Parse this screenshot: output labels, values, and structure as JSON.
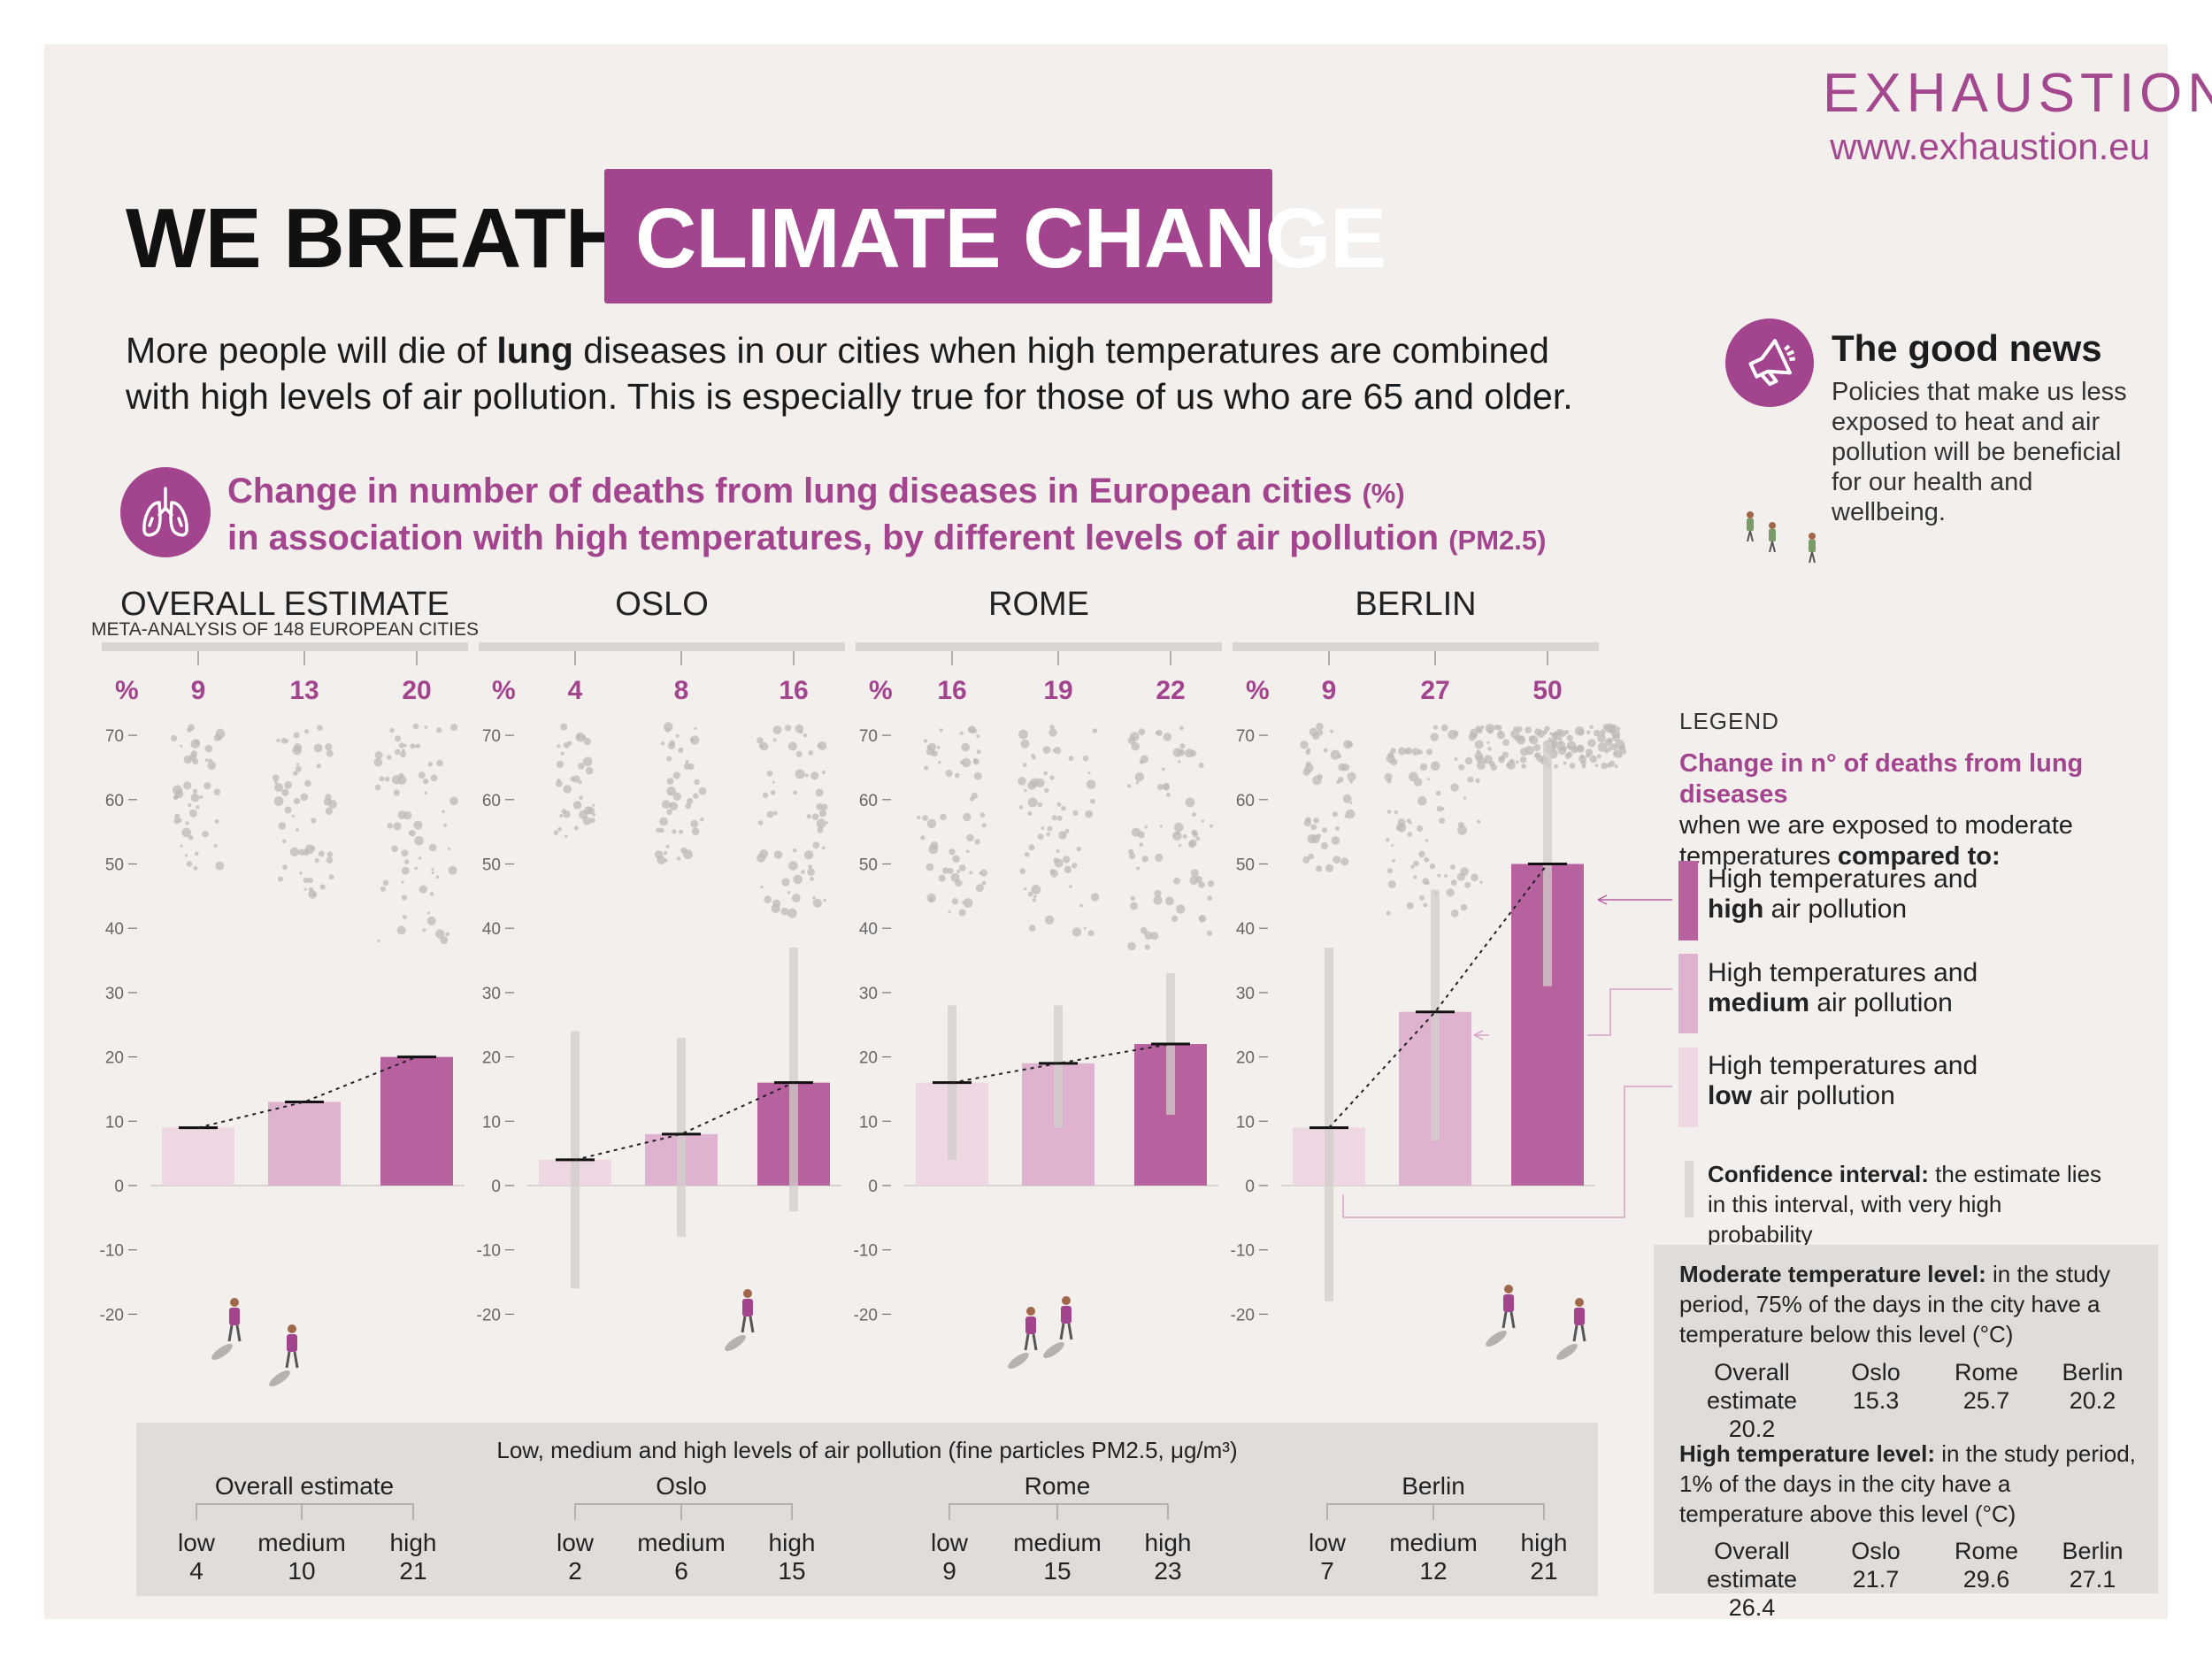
{
  "brand": {
    "name": "EXHAUSTION",
    "url": "www.exhaustion.eu"
  },
  "title": {
    "part1": "WE BREATHE",
    "part2": "CLIMATE CHANGE"
  },
  "intro": {
    "pre": "More people will die of ",
    "bold": "lung",
    "post": " diseases in our cities when high temperatures are combined with high levels of air pollution. This is especially true for those of us who are 65 and older."
  },
  "good_news": {
    "title": "The good news",
    "body": "Policies that make us less exposed to heat and air pollution will be beneficial for our health and wellbeing."
  },
  "chart_heading": {
    "line1": "Change in number of deaths from lung diseases in European cities",
    "line1_unit": "(%)",
    "line2": "in association with high temperatures, by different levels of air pollution",
    "line2_unit": "(PM2.5)"
  },
  "chart_data": {
    "type": "bar",
    "ylabel": "%",
    "ylim": [
      -20,
      70
    ],
    "yticks": [
      70,
      60,
      50,
      40,
      30,
      20,
      10,
      0,
      -10,
      -20
    ],
    "series_names": [
      "High temperatures and low air pollution",
      "High temperatures and medium air pollution",
      "High temperatures and high air pollution"
    ],
    "panels": [
      {
        "title": "OVERALL ESTIMATE",
        "subtitle": "META-ANALYSIS OF 148 EUROPEAN CITIES",
        "values": [
          9,
          13,
          20
        ],
        "ci": [
          [
            9,
            9
          ],
          [
            13,
            13
          ],
          [
            20,
            20
          ]
        ]
      },
      {
        "title": "OSLO",
        "subtitle": "",
        "values": [
          4,
          8,
          16
        ],
        "ci": [
          [
            -16,
            24
          ],
          [
            -8,
            23
          ],
          [
            -4,
            37
          ]
        ]
      },
      {
        "title": "ROME",
        "subtitle": "",
        "values": [
          16,
          19,
          22
        ],
        "ci": [
          [
            4,
            28
          ],
          [
            9,
            28
          ],
          [
            11,
            33
          ]
        ]
      },
      {
        "title": "BERLIN",
        "subtitle": "",
        "values": [
          9,
          27,
          50
        ],
        "ci": [
          [
            -18,
            37
          ],
          [
            7,
            46
          ],
          [
            31,
            69
          ]
        ]
      }
    ]
  },
  "legend": {
    "heading": "LEGEND",
    "sub_purple": "Change in n° of deaths from lung diseases",
    "sub_rest": "when we are exposed to moderate temperatures",
    "sub_bold": "compared to:",
    "items": [
      {
        "line1": "High temperatures and",
        "bold": "high",
        "rest": " air pollution",
        "color": "#b8619f"
      },
      {
        "line1": "High temperatures and",
        "bold": "medium",
        "rest": " air pollution",
        "color": "#dfb2cf"
      },
      {
        "line1": "High temperatures and",
        "bold": "low",
        "rest": " air pollution",
        "color": "#ecd7e3"
      }
    ],
    "ci_bold": "Confidence interval:",
    "ci_text": " the estimate lies in this interval, with very high probability"
  },
  "temperature_table": {
    "moderate": {
      "bold": "Moderate temperature level:",
      "text": " in the study period, 75% of the days in the city have a temperature below this level (°C)",
      "cols": [
        {
          "label": "Overall estimate",
          "value": "20.2"
        },
        {
          "label": "Oslo",
          "value": "15.3"
        },
        {
          "label": "Rome",
          "value": "25.7"
        },
        {
          "label": "Berlin",
          "value": "20.2"
        }
      ]
    },
    "high": {
      "bold": "High temperature level:",
      "text": " in the study period, 1% of the days in the city have a temperature above this level (°C)",
      "cols": [
        {
          "label": "Overall estimate",
          "value": "26.4"
        },
        {
          "label": "Oslo",
          "value": "21.7"
        },
        {
          "label": "Rome",
          "value": "29.6"
        },
        {
          "label": "Berlin",
          "value": "27.1"
        }
      ]
    }
  },
  "pollution_table": {
    "title": "Low, medium and high levels of air pollution (fine particles PM2.5, μg/m³)",
    "level_labels": [
      "low",
      "medium",
      "high"
    ],
    "groups": [
      {
        "name": "Overall estimate",
        "values": [
          "4",
          "10",
          "21"
        ]
      },
      {
        "name": "Oslo",
        "values": [
          "2",
          "6",
          "15"
        ]
      },
      {
        "name": "Rome",
        "values": [
          "9",
          "15",
          "23"
        ]
      },
      {
        "name": "Berlin",
        "values": [
          "7",
          "12",
          "21"
        ]
      }
    ]
  },
  "colors": {
    "accent": "#a3448e",
    "bar_low": "#ecd7e3",
    "bar_medium": "#dfb2cf",
    "bar_high": "#b8619f",
    "ci": "#d2cdc9",
    "dots": "#bfbab7",
    "background": "#f3efec"
  }
}
